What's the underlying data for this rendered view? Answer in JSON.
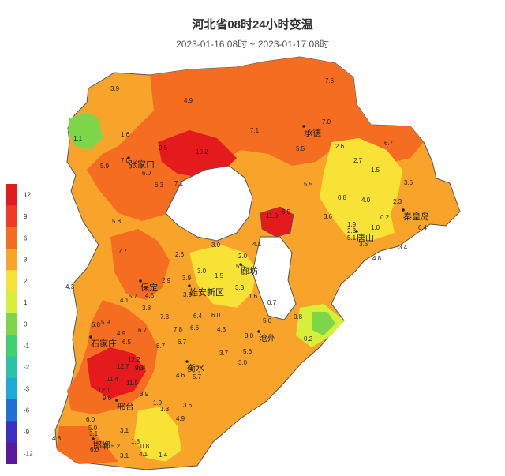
{
  "title": "河北省08时24小时变温",
  "subtitle": "2023-01-16 08时 ~ 2023-01-17 08时",
  "legend": {
    "ticks": [
      "12",
      "9",
      "6",
      "3",
      "2",
      "1",
      "0",
      "-1",
      "-2",
      "-3",
      "-6",
      "-9",
      "-12"
    ],
    "colors": [
      "#e41a1c",
      "#f03b20",
      "#f46d20",
      "#f8a32a",
      "#f7e235",
      "#d6ef3a",
      "#7dd64a",
      "#3fd16e",
      "#2cc2a8",
      "#1fa9d9",
      "#1f6fd6",
      "#3b2fc0",
      "#5b189a"
    ]
  },
  "cities": [
    {
      "name": "张家口"
    },
    {
      "name": "承德"
    },
    {
      "name": "秦皇岛"
    },
    {
      "name": "唐山"
    },
    {
      "name": "廊坊"
    },
    {
      "name": "保定"
    },
    {
      "name": "雄安新区"
    },
    {
      "name": "沧州"
    },
    {
      "name": "石家庄"
    },
    {
      "name": "衡水"
    },
    {
      "name": "邢台"
    },
    {
      "name": "邯郸"
    }
  ],
  "stations": [
    "3.9",
    "4.9",
    "7.6",
    "7.0",
    "6.7",
    "1.6",
    "9.5",
    "10.2",
    "7.1",
    "5.5",
    "2.6",
    "2.7",
    "1.5",
    "7.0",
    "5.9",
    "6.0",
    "6.3",
    "7.1",
    "5.5",
    "0.8",
    "4.0",
    "2.3",
    "3.5",
    "1.1",
    "5.8",
    "11.0",
    "6.5",
    "3.6",
    "1.9",
    "2.3",
    "1.0",
    "0.2",
    "6.4",
    "5.1",
    "3.6",
    "3.4",
    "4.8",
    "7.7",
    "2.6",
    "3.0",
    "4.1",
    "2.0",
    "5.5",
    "4.3",
    "2.9",
    "3.9",
    "3.0",
    "1.5",
    "4.1",
    "5.7",
    "4.5",
    "3.9",
    "3.3",
    "3.8",
    "1.6",
    "0.7",
    "7.3",
    "6.4",
    "6.0",
    "5.0",
    "0.8",
    "5.8",
    "5.9",
    "6.7",
    "7.8",
    "6.6",
    "4.3",
    "3.0",
    "4.9",
    "6.5",
    "8.7",
    "6.7",
    "3.7",
    "5.6",
    "0.2",
    "3.0",
    "12.2",
    "9.3",
    "12.7",
    "6.3",
    "4.6",
    "5.7",
    "11.4",
    "11.5",
    "3.9",
    "12.1",
    "9.6",
    "1.9",
    "1.3",
    "3.6",
    "4.9",
    "6.0",
    "3.1",
    "5.0",
    "3.1",
    "4.8",
    "1.8",
    "0.8",
    "6.0",
    "4.1",
    "1.4",
    "5.2",
    "3.1"
  ]
}
